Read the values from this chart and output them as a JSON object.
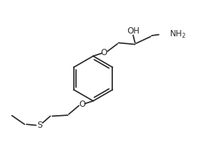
{
  "bg_color": "#ffffff",
  "line_color": "#2a2a2a",
  "line_width": 1.3,
  "figsize": [
    2.84,
    2.25
  ],
  "dpi": 100,
  "xlim": [
    0,
    10
  ],
  "ylim": [
    0,
    8
  ]
}
